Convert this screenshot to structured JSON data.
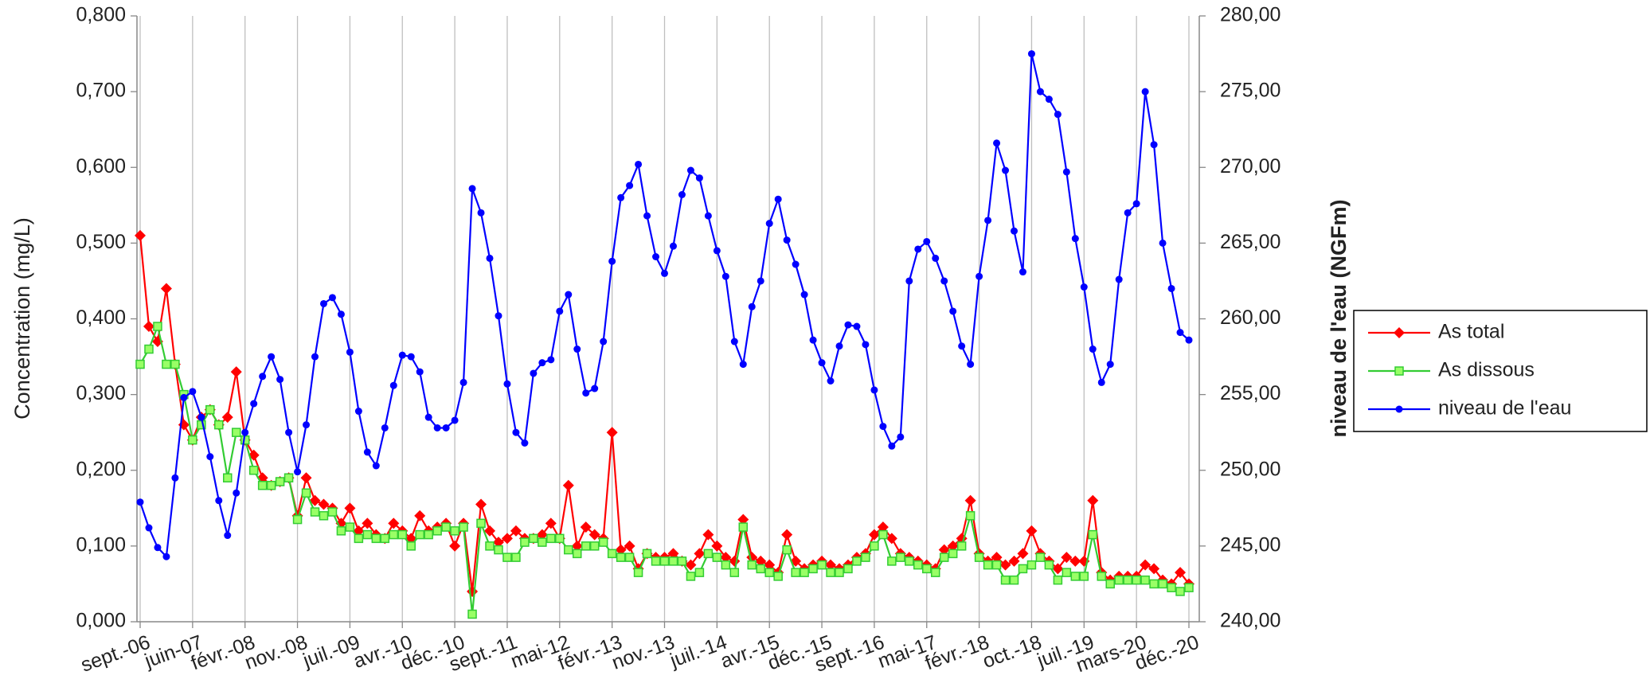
{
  "chart_data": {
    "type": "line",
    "y_label": "Concentration  (mg/L)",
    "y2_label": "niveau de l'eau (NGFm)",
    "categories": [
      "sept.-06",
      null,
      null,
      null,
      null,
      null,
      "juin-07",
      null,
      null,
      null,
      null,
      null,
      "févr.-08",
      null,
      null,
      null,
      null,
      null,
      "nov.-08",
      null,
      null,
      null,
      null,
      null,
      "juil.-09",
      null,
      null,
      null,
      null,
      null,
      "avr.-10",
      null,
      null,
      null,
      null,
      null,
      "déc.-10",
      null,
      null,
      null,
      null,
      null,
      "sept.-11",
      null,
      null,
      null,
      null,
      null,
      "mai-12",
      null,
      null,
      null,
      null,
      null,
      "févr.-13",
      null,
      null,
      null,
      null,
      null,
      "nov.-13",
      null,
      null,
      null,
      null,
      null,
      "juil.-14",
      null,
      null,
      null,
      null,
      null,
      "avr.-15",
      null,
      null,
      null,
      null,
      null,
      "déc.-15",
      null,
      null,
      null,
      null,
      null,
      "sept.-16",
      null,
      null,
      null,
      null,
      null,
      "mai-17",
      null,
      null,
      null,
      null,
      null,
      "févr.-18",
      null,
      null,
      null,
      null,
      null,
      "oct.-18",
      null,
      null,
      null,
      null,
      null,
      "juil.-19",
      null,
      null,
      null,
      null,
      null,
      "mars-20",
      null,
      null,
      null,
      null,
      null,
      "déc.-20"
    ],
    "ylim": [
      0,
      0.8
    ],
    "yticks": [
      {
        "value": 0,
        "label": "0,000"
      },
      {
        "value": 0.1,
        "label": "0,100"
      },
      {
        "value": 0.2,
        "label": "0,200"
      },
      {
        "value": 0.3,
        "label": "0,300"
      },
      {
        "value": 0.4,
        "label": "0,400"
      },
      {
        "value": 0.5,
        "label": "0,500"
      },
      {
        "value": 0.6,
        "label": "0,600"
      },
      {
        "value": 0.7,
        "label": "0,700"
      },
      {
        "value": 0.8,
        "label": "0,800"
      }
    ],
    "y2lim": [
      240,
      280
    ],
    "y2ticks": [
      {
        "value": 240,
        "label": "240,00"
      },
      {
        "value": 245,
        "label": "245,00"
      },
      {
        "value": 250,
        "label": "250,00"
      },
      {
        "value": 255,
        "label": "255,00"
      },
      {
        "value": 260,
        "label": "260,00"
      },
      {
        "value": 265,
        "label": "265,00"
      },
      {
        "value": 270,
        "label": "270,00"
      },
      {
        "value": 275,
        "label": "275,00"
      },
      {
        "value": 280,
        "label": "280,00"
      }
    ],
    "grid": "x",
    "legend": "right",
    "series": [
      {
        "name": "As total",
        "color": "#ff0000",
        "marker": "diamond",
        "values": [
          0.51,
          0.39,
          0.37,
          0.44,
          0.34,
          0.26,
          0.24,
          0.27,
          0.28,
          0.26,
          0.27,
          0.33,
          0.24,
          0.22,
          0.19,
          0.18,
          0.185,
          0.19,
          0.14,
          0.19,
          0.16,
          0.155,
          0.15,
          0.13,
          0.15,
          0.12,
          0.13,
          0.115,
          0.11,
          0.13,
          0.12,
          0.11,
          0.14,
          0.12,
          0.125,
          0.13,
          0.1,
          0.13,
          0.04,
          0.155,
          0.12,
          0.105,
          0.11,
          0.12,
          0.11,
          0.11,
          0.115,
          0.13,
          0.11,
          0.18,
          0.1,
          0.125,
          0.115,
          0.11,
          0.25,
          0.095,
          0.1,
          0.07,
          0.09,
          0.085,
          0.085,
          0.09,
          0.08,
          0.075,
          0.09,
          0.115,
          0.1,
          0.085,
          0.08,
          0.135,
          0.085,
          0.08,
          0.075,
          0.065,
          0.115,
          0.08,
          0.07,
          0.075,
          0.08,
          0.075,
          0.07,
          0.075,
          0.085,
          0.09,
          0.115,
          0.125,
          0.11,
          0.09,
          0.085,
          0.08,
          0.075,
          0.07,
          0.095,
          0.1,
          0.11,
          0.16,
          0.09,
          0.08,
          0.085,
          0.075,
          0.08,
          0.09,
          0.12,
          0.09,
          0.08,
          0.07,
          0.085,
          0.08,
          0.08,
          0.16,
          0.065,
          0.055,
          0.06,
          0.06,
          0.06,
          0.075,
          0.07,
          0.055,
          0.05,
          0.065,
          0.05
        ]
      },
      {
        "name": "As dissous",
        "color": "#33cc33",
        "marker": "square",
        "values": [
          0.34,
          0.36,
          0.39,
          0.34,
          0.34,
          0.3,
          0.24,
          0.26,
          0.28,
          0.26,
          0.19,
          0.25,
          0.24,
          0.2,
          0.18,
          0.18,
          0.185,
          0.19,
          0.135,
          0.17,
          0.145,
          0.14,
          0.145,
          0.12,
          0.125,
          0.11,
          0.115,
          0.11,
          0.11,
          0.115,
          0.115,
          0.1,
          0.115,
          0.115,
          0.12,
          0.125,
          0.12,
          0.125,
          0.01,
          0.13,
          0.1,
          0.095,
          0.085,
          0.085,
          0.105,
          0.11,
          0.105,
          0.11,
          0.11,
          0.095,
          0.09,
          0.1,
          0.1,
          0.105,
          0.09,
          0.085,
          0.085,
          0.065,
          0.09,
          0.08,
          0.08,
          0.08,
          0.08,
          0.06,
          0.065,
          0.09,
          0.085,
          0.075,
          0.065,
          0.125,
          0.075,
          0.07,
          0.065,
          0.06,
          0.095,
          0.065,
          0.065,
          0.07,
          0.075,
          0.065,
          0.065,
          0.07,
          0.08,
          0.085,
          0.1,
          0.115,
          0.08,
          0.085,
          0.08,
          0.075,
          0.07,
          0.065,
          0.085,
          0.09,
          0.1,
          0.14,
          0.085,
          0.075,
          0.075,
          0.055,
          0.055,
          0.07,
          0.075,
          0.085,
          0.075,
          0.055,
          0.065,
          0.06,
          0.06,
          0.115,
          0.06,
          0.05,
          0.055,
          0.055,
          0.055,
          0.055,
          0.05,
          0.05,
          0.045,
          0.04,
          0.045
        ]
      },
      {
        "name": "niveau de l'eau",
        "color": "#0000ff",
        "marker": "circle",
        "axis": "y2",
        "values": [
          247.9,
          246.2,
          244.9,
          244.3,
          249.5,
          254.8,
          255.2,
          253.5,
          250.9,
          248.0,
          245.7,
          248.5,
          252.5,
          254.4,
          256.2,
          257.5,
          256.0,
          252.5,
          249.9,
          253.0,
          257.5,
          261.0,
          261.4,
          260.3,
          257.8,
          253.9,
          251.2,
          250.3,
          252.8,
          255.6,
          257.6,
          257.5,
          256.5,
          253.5,
          252.8,
          252.8,
          253.3,
          255.8,
          268.6,
          267.0,
          264.0,
          260.2,
          255.7,
          252.5,
          251.8,
          256.4,
          257.1,
          257.3,
          260.5,
          261.6,
          258.0,
          255.1,
          255.4,
          258.5,
          263.8,
          268.0,
          268.8,
          270.2,
          266.8,
          264.1,
          263.0,
          264.8,
          268.2,
          269.8,
          269.3,
          266.8,
          264.5,
          262.8,
          258.5,
          257.0,
          260.8,
          262.5,
          266.3,
          267.9,
          265.2,
          263.6,
          261.6,
          258.6,
          257.1,
          255.9,
          258.2,
          259.6,
          259.5,
          258.3,
          255.3,
          252.9,
          251.6,
          252.2,
          262.5,
          264.6,
          265.1,
          264.0,
          262.5,
          260.5,
          258.2,
          257.0,
          262.8,
          266.5,
          271.6,
          269.8,
          265.8,
          263.1,
          277.5,
          275.0,
          274.5,
          273.5,
          269.7,
          265.3,
          262.1,
          258.0,
          255.8,
          257.0,
          262.6,
          267.0,
          267.6,
          275.0,
          271.5,
          265.0,
          262.0,
          259.1,
          258.6
        ]
      }
    ]
  }
}
